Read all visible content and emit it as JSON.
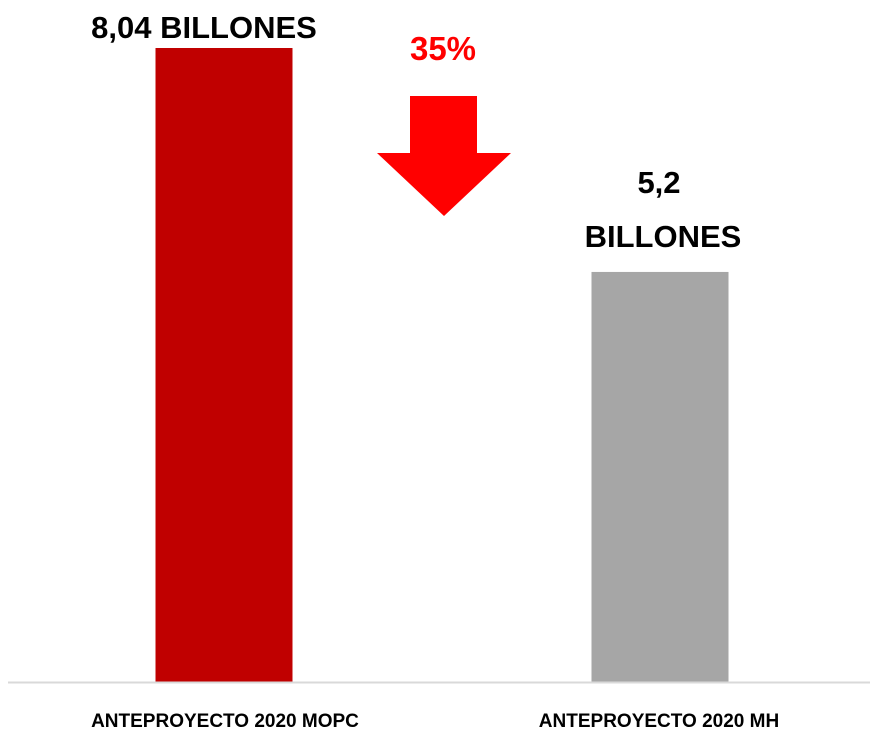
{
  "chart_data": {
    "type": "bar",
    "title": "",
    "xlabel": "",
    "ylabel": "",
    "categories": [
      "ANTEPROYECTO 2020 MOPC",
      "ANTEPROYECTO 2020 MH"
    ],
    "values": [
      8.04,
      5.2
    ],
    "data_labels": [
      [
        "8,04 BILLONES"
      ],
      [
        "5,2",
        "BILLONES"
      ]
    ],
    "bar_colors": [
      "#c00000",
      "#a6a6a6"
    ],
    "ylim": [
      0,
      8.04
    ],
    "grid": false,
    "legend": "none",
    "annotation": {
      "text": "35%",
      "color": "#ff0000",
      "arrow": "down-arrow-icon",
      "arrow_color": "#ff0000"
    },
    "axis_color": "#d9d9d9"
  }
}
